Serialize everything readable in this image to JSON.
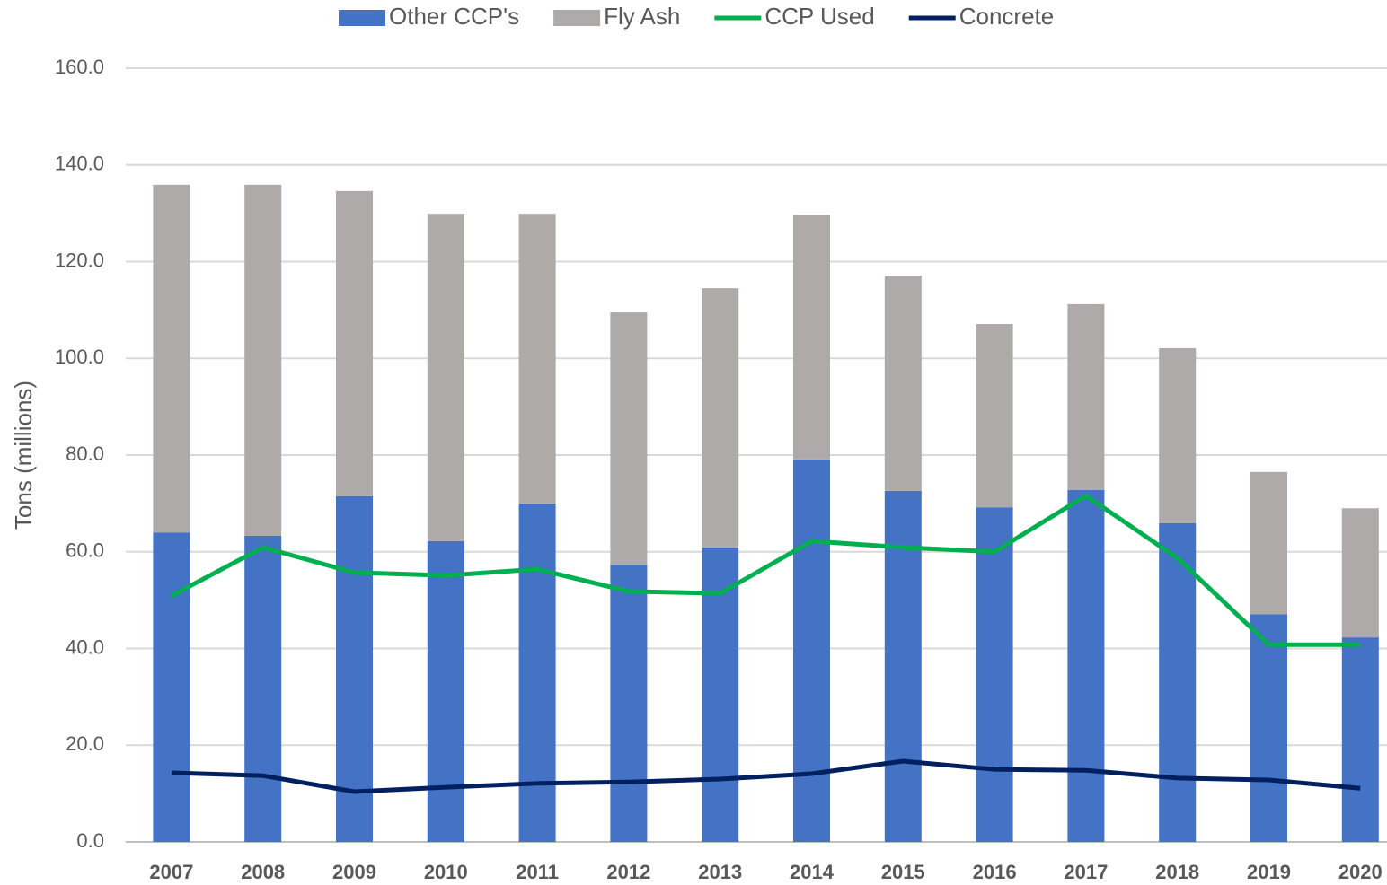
{
  "chart_data": {
    "type": "bar-line",
    "y_axis_label": "Tons (millions)",
    "categories": [
      "2007",
      "2008",
      "2009",
      "2010",
      "2011",
      "2012",
      "2013",
      "2014",
      "2015",
      "2016",
      "2017",
      "2018",
      "2019",
      "2020"
    ],
    "series": [
      {
        "name": "Other CCP's",
        "type": "bar",
        "stack": true,
        "color": "#4472c4",
        "values": [
          64.0,
          63.3,
          71.5,
          62.2,
          70.0,
          57.4,
          60.9,
          79.1,
          72.6,
          69.2,
          72.8,
          65.9,
          47.1,
          42.3
        ]
      },
      {
        "name": "Fly Ash",
        "type": "bar",
        "stack": true,
        "color": "#aeaaaa",
        "values": [
          71.9,
          72.6,
          63.1,
          67.7,
          59.9,
          52.1,
          53.6,
          50.5,
          44.5,
          37.9,
          38.4,
          36.2,
          29.4,
          26.7
        ]
      },
      {
        "name": "CCP Used",
        "type": "line",
        "color": "#00b050",
        "values": [
          50.9,
          60.9,
          55.7,
          55.1,
          56.4,
          51.8,
          51.4,
          62.2,
          60.9,
          60.0,
          71.6,
          58.7,
          40.8,
          40.8
        ]
      },
      {
        "name": "Concrete",
        "type": "line",
        "color": "#002060",
        "values": [
          14.3,
          13.7,
          10.4,
          11.3,
          12.1,
          12.4,
          13.0,
          14.1,
          16.7,
          15.0,
          14.8,
          13.2,
          12.8,
          11.1
        ]
      }
    ],
    "ylim": [
      0,
      160
    ],
    "yticks": [
      {
        "value": 0,
        "label": "0.0"
      },
      {
        "value": 20,
        "label": "20.0"
      },
      {
        "value": 40,
        "label": "40.0"
      },
      {
        "value": 60,
        "label": "60.0"
      },
      {
        "value": 80,
        "label": "80.0"
      },
      {
        "value": 100,
        "label": "100.0"
      },
      {
        "value": 120,
        "label": "120.0"
      },
      {
        "value": 140,
        "label": "140.0"
      },
      {
        "value": 160,
        "label": "160.0"
      }
    ],
    "grid": true,
    "legend": "top"
  }
}
